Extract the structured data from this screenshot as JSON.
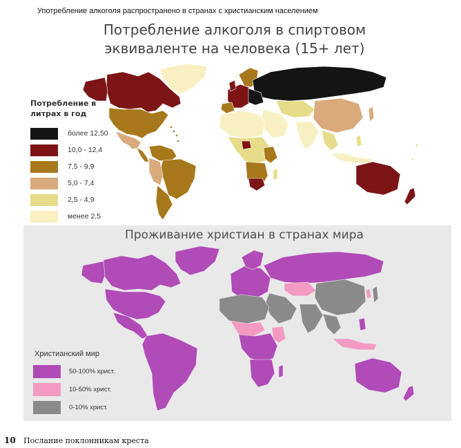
{
  "caption": "Употребление алкоголя распространено в странах с христианским населением",
  "map1": {
    "title_line1": "Потребление алкоголя в спиртовом",
    "title_line2": "эквиваленте на человека (15+ лет)",
    "legend_title_line1": "Потребление в",
    "legend_title_line2": "литрах в год",
    "legend": [
      {
        "label": "более 12,50",
        "color": "#141414"
      },
      {
        "label": "10,0 - 12,4",
        "color": "#7d1416"
      },
      {
        "label": "7,5 - 9,9",
        "color": "#a8781c"
      },
      {
        "label": "5,0 - 7,4",
        "color": "#d9aa7b"
      },
      {
        "label": "2,5 - 4,9",
        "color": "#e6dc8a"
      },
      {
        "label": "менее 2,5",
        "color": "#f8f0c2"
      }
    ]
  },
  "map2": {
    "title": "Проживание христиан в странах мира",
    "legend_title": "Христианский мир",
    "legend": [
      {
        "label": "50-100% христ.",
        "color": "#b04bb8"
      },
      {
        "label": "10-50% христ.",
        "color": "#f39ac3"
      },
      {
        "label": "0-10% христ.",
        "color": "#8a8a8a"
      }
    ]
  },
  "footer": {
    "page_number": "10",
    "text": "Послание поклонникам креста"
  }
}
